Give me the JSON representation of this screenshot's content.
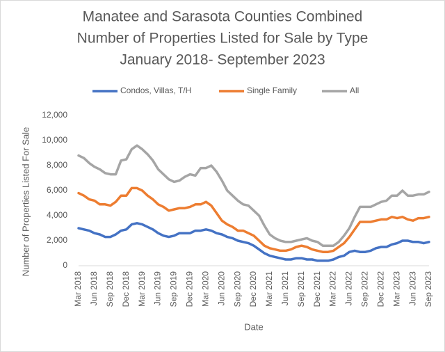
{
  "chart_data": {
    "type": "line",
    "title": [
      "Manatee and Sarasota Counties Combined",
      "Number of   Properties Listed for Sale by Type",
      "January 2018- September 2023"
    ],
    "x_label": "Date",
    "y_label": "Number  of Properties Listed For Sale",
    "categories": [
      "Mar 2018",
      null,
      null,
      "Jun 2018",
      null,
      null,
      "Sep 2018",
      null,
      null,
      "Dec 2018",
      null,
      null,
      "Mar 2019",
      null,
      null,
      "Jun 2019",
      null,
      null,
      "Sep 2019",
      null,
      null,
      "Dec 2019",
      null,
      null,
      "Mar 2020",
      null,
      null,
      "Jun 2020",
      null,
      null,
      "Sep 2020",
      null,
      null,
      "Dec 2020",
      null,
      null,
      "Mar 2021",
      null,
      null,
      "Jun 2021",
      null,
      null,
      "Sep 2021",
      null,
      null,
      "Dec 2021",
      null,
      null,
      "Mar 2022",
      null,
      null,
      "Jun 2022",
      null,
      null,
      "Sep 2022",
      null,
      null,
      "Dec 2022",
      null,
      null,
      "Mar 2023",
      null,
      null,
      "Jun 2023",
      null,
      null,
      "Sep 2023"
    ],
    "series": [
      {
        "name": "Condos, Villas, T/H",
        "color": "#4472c4",
        "values": [
          3000,
          2900,
          2800,
          2600,
          2500,
          2300,
          2300,
          2500,
          2800,
          2900,
          3300,
          3400,
          3300,
          3100,
          2900,
          2600,
          2400,
          2300,
          2400,
          2600,
          2600,
          2600,
          2800,
          2800,
          2900,
          2800,
          2600,
          2500,
          2300,
          2200,
          2000,
          1900,
          1800,
          1600,
          1300,
          1000,
          800,
          700,
          600,
          500,
          500,
          600,
          600,
          500,
          500,
          400,
          400,
          400,
          500,
          700,
          800,
          1100,
          1200,
          1100,
          1100,
          1200,
          1400,
          1500,
          1500,
          1700,
          1800,
          2000,
          2000,
          1900,
          1900,
          1800,
          1900
        ]
      },
      {
        "name": "Single Family",
        "color": "#ed7d31",
        "values": [
          5800,
          5600,
          5300,
          5200,
          4900,
          4900,
          4800,
          5100,
          5600,
          5600,
          6200,
          6200,
          6000,
          5600,
          5300,
          4900,
          4700,
          4400,
          4500,
          4600,
          4600,
          4700,
          4900,
          4900,
          5100,
          4800,
          4200,
          3600,
          3300,
          3100,
          2800,
          2800,
          2600,
          2400,
          2000,
          1600,
          1400,
          1300,
          1200,
          1200,
          1300,
          1500,
          1600,
          1500,
          1300,
          1200,
          1100,
          1100,
          1200,
          1500,
          1800,
          2300,
          2900,
          3500,
          3500,
          3500,
          3600,
          3700,
          3700,
          3900,
          3800,
          3900,
          3700,
          3600,
          3800,
          3800,
          3900
        ]
      },
      {
        "name": "All",
        "color": "#a5a5a5",
        "values": [
          8800,
          8600,
          8200,
          7900,
          7700,
          7400,
          7300,
          7300,
          8400,
          8500,
          9300,
          9600,
          9300,
          8900,
          8400,
          7700,
          7300,
          6900,
          6700,
          6800,
          7100,
          7300,
          7200,
          7800,
          7800,
          8000,
          7500,
          6800,
          6000,
          5600,
          5200,
          4900,
          4800,
          4400,
          4000,
          3200,
          2500,
          2200,
          2000,
          1900,
          1900,
          2000,
          2100,
          2200,
          2000,
          1900,
          1600,
          1600,
          1600,
          1900,
          2400,
          3000,
          3900,
          4700,
          4700,
          4700,
          4900,
          5100,
          5200,
          5600,
          5600,
          6000,
          5600,
          5600,
          5700,
          5700,
          5900
        ]
      }
    ],
    "ylim": [
      0,
      12000
    ],
    "yticks": [
      0,
      {
        "value": 2000,
        "label": "2,000"
      },
      {
        "value": 4000,
        "label": "4,000"
      },
      {
        "value": 6000,
        "label": "6,000"
      },
      {
        "value": 8000,
        "label": "8,000"
      },
      {
        "value": 10000,
        "label": "10,000"
      },
      {
        "value": 12000,
        "label": "12,000"
      }
    ],
    "grid": false,
    "legend": "top"
  }
}
